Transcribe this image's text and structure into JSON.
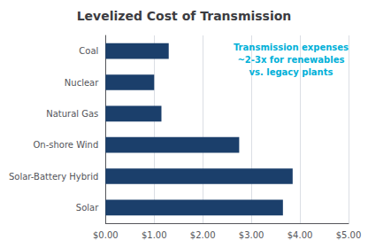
{
  "chart_data": {
    "type": "bar",
    "title": "Levelized Cost of Transmission",
    "orientation": "horizontal",
    "categories": [
      "Solar",
      "Solar-Battery Hybrid",
      "On-shore Wind",
      "Natural Gas",
      "Nuclear",
      "Coal"
    ],
    "values": [
      3.65,
      3.85,
      2.75,
      1.15,
      1.0,
      1.3
    ],
    "color": "#1b3f6b",
    "xlim": [
      0,
      5.0
    ],
    "xticks": [
      {
        "value": 0,
        "label": "$0.00"
      },
      {
        "value": 1,
        "label": "$1.00"
      },
      {
        "value": 2,
        "label": "$2.00"
      },
      {
        "value": 3,
        "label": "$3.00"
      },
      {
        "value": 4,
        "label": "$4.00"
      },
      {
        "value": 5,
        "label": "$5.00"
      }
    ],
    "grid": true,
    "annotations": [
      {
        "text": "Transmission expenses\n~2-3x for renewables\nvs. legacy plants",
        "color": "#00b0d8"
      }
    ]
  }
}
